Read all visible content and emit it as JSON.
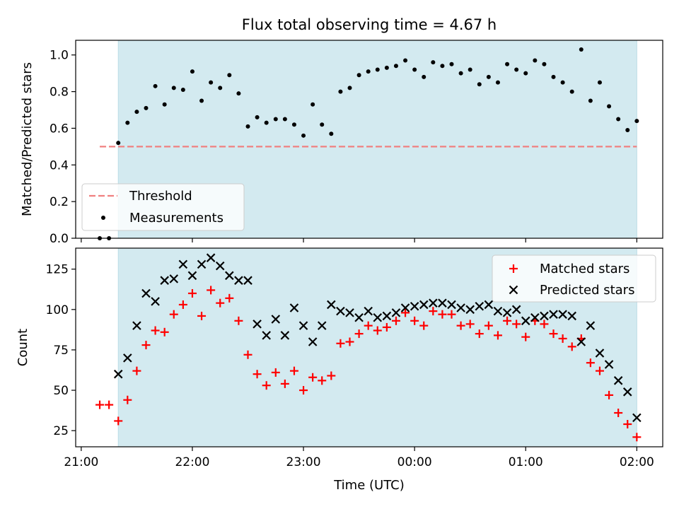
{
  "title": "Flux total observing time = 4.67 h",
  "colors": {
    "shade": "#d3eaf0",
    "threshold": "#f08080",
    "measurements": "#000000",
    "matched": "#ff0000",
    "predicted": "#000000"
  },
  "chart_data": [
    {
      "type": "scatter",
      "ylabel": "Matched/Predicted stars",
      "xlabel": "",
      "xlim": [
        "20:57",
        "02:14"
      ],
      "ylim": [
        0.0,
        1.08
      ],
      "yticks": [
        "0.0",
        "0.2",
        "0.4",
        "0.6",
        "0.8",
        "1.0"
      ],
      "shaded_interval": [
        "21:20",
        "02:00"
      ],
      "legend_position": "lower-left",
      "threshold": {
        "name": "Threshold",
        "value": 0.5,
        "x": [
          "21:10",
          "02:00"
        ]
      },
      "series": [
        {
          "name": "Measurements",
          "x": [
            "21:10",
            "21:15",
            "21:20",
            "21:25",
            "21:30",
            "21:35",
            "21:40",
            "21:45",
            "21:50",
            "21:55",
            "22:00",
            "22:05",
            "22:10",
            "22:15",
            "22:20",
            "22:25",
            "22:30",
            "22:35",
            "22:40",
            "22:45",
            "22:50",
            "22:55",
            "23:00",
            "23:05",
            "23:10",
            "23:15",
            "23:20",
            "23:25",
            "23:30",
            "23:35",
            "23:40",
            "23:45",
            "23:50",
            "23:55",
            "00:00",
            "00:05",
            "00:10",
            "00:15",
            "00:20",
            "00:25",
            "00:30",
            "00:35",
            "00:40",
            "00:45",
            "00:50",
            "00:55",
            "01:00",
            "01:05",
            "01:10",
            "01:15",
            "01:20",
            "01:25",
            "01:30",
            "01:35",
            "01:40",
            "01:45",
            "01:50",
            "01:55",
            "02:00"
          ],
          "y": [
            0.0,
            0.0,
            0.52,
            0.63,
            0.69,
            0.71,
            0.83,
            0.73,
            0.82,
            0.81,
            0.91,
            0.75,
            0.85,
            0.82,
            0.89,
            0.79,
            0.61,
            0.66,
            0.63,
            0.65,
            0.65,
            0.62,
            0.56,
            0.73,
            0.62,
            0.57,
            0.8,
            0.82,
            0.89,
            0.91,
            0.92,
            0.93,
            0.94,
            0.97,
            0.92,
            0.88,
            0.96,
            0.94,
            0.95,
            0.9,
            0.92,
            0.84,
            0.88,
            0.85,
            0.95,
            0.92,
            0.9,
            0.97,
            0.95,
            0.88,
            0.85,
            0.8,
            1.03,
            0.75,
            0.85,
            0.72,
            0.65,
            0.59,
            0.64
          ]
        }
      ]
    },
    {
      "type": "scatter",
      "ylabel": "Count",
      "xlabel": "Time (UTC)",
      "xlim": [
        "20:57",
        "02:14"
      ],
      "ylim": [
        15,
        138
      ],
      "yticks": [
        "25",
        "50",
        "75",
        "100",
        "125"
      ],
      "xticks": [
        "21:00",
        "22:00",
        "23:00",
        "00:00",
        "01:00",
        "02:00"
      ],
      "shaded_interval": [
        "21:20",
        "02:00"
      ],
      "legend_position": "upper-right",
      "series": [
        {
          "name": "Matched stars",
          "marker": "+",
          "x": [
            "21:10",
            "21:15",
            "21:20",
            "21:25",
            "21:30",
            "21:35",
            "21:40",
            "21:45",
            "21:50",
            "21:55",
            "22:00",
            "22:05",
            "22:10",
            "22:15",
            "22:20",
            "22:25",
            "22:30",
            "22:35",
            "22:40",
            "22:45",
            "22:50",
            "22:55",
            "23:00",
            "23:05",
            "23:10",
            "23:15",
            "23:20",
            "23:25",
            "23:30",
            "23:35",
            "23:40",
            "23:45",
            "23:50",
            "23:55",
            "00:00",
            "00:05",
            "00:10",
            "00:15",
            "00:20",
            "00:25",
            "00:30",
            "00:35",
            "00:40",
            "00:45",
            "00:50",
            "00:55",
            "01:00",
            "01:05",
            "01:10",
            "01:15",
            "01:20",
            "01:25",
            "01:30",
            "01:35",
            "01:40",
            "01:45",
            "01:50",
            "01:55",
            "02:00"
          ],
          "y": [
            41,
            41,
            31,
            44,
            62,
            78,
            87,
            86,
            97,
            103,
            110,
            96,
            112,
            104,
            107,
            93,
            72,
            60,
            53,
            61,
            54,
            62,
            50,
            58,
            56,
            59,
            79,
            80,
            85,
            90,
            87,
            89,
            93,
            98,
            93,
            90,
            99,
            97,
            97,
            90,
            91,
            85,
            90,
            84,
            93,
            91,
            83,
            93,
            91,
            85,
            82,
            77,
            82,
            67,
            62,
            47,
            36,
            29,
            21
          ]
        },
        {
          "name": "Predicted stars",
          "marker": "x",
          "x": [
            "21:20",
            "21:25",
            "21:30",
            "21:35",
            "21:40",
            "21:45",
            "21:50",
            "21:55",
            "22:00",
            "22:05",
            "22:10",
            "22:15",
            "22:20",
            "22:25",
            "22:30",
            "22:35",
            "22:40",
            "22:45",
            "22:50",
            "22:55",
            "23:00",
            "23:05",
            "23:10",
            "23:15",
            "23:20",
            "23:25",
            "23:30",
            "23:35",
            "23:40",
            "23:45",
            "23:50",
            "23:55",
            "00:00",
            "00:05",
            "00:10",
            "00:15",
            "00:20",
            "00:25",
            "00:30",
            "00:35",
            "00:40",
            "00:45",
            "00:50",
            "00:55",
            "01:00",
            "01:05",
            "01:10",
            "01:15",
            "01:20",
            "01:25",
            "01:30",
            "01:35",
            "01:40",
            "01:45",
            "01:50",
            "01:55",
            "02:00"
          ],
          "y": [
            60,
            70,
            90,
            110,
            105,
            118,
            119,
            128,
            121,
            128,
            132,
            127,
            121,
            118,
            118,
            91,
            84,
            94,
            84,
            101,
            90,
            80,
            90,
            103,
            99,
            98,
            95,
            99,
            95,
            96,
            98,
            101,
            102,
            103,
            104,
            104,
            103,
            101,
            100,
            102,
            103,
            99,
            98,
            100,
            93,
            95,
            96,
            97,
            97,
            96,
            80,
            90,
            73,
            66,
            56,
            49,
            33
          ]
        }
      ]
    }
  ]
}
